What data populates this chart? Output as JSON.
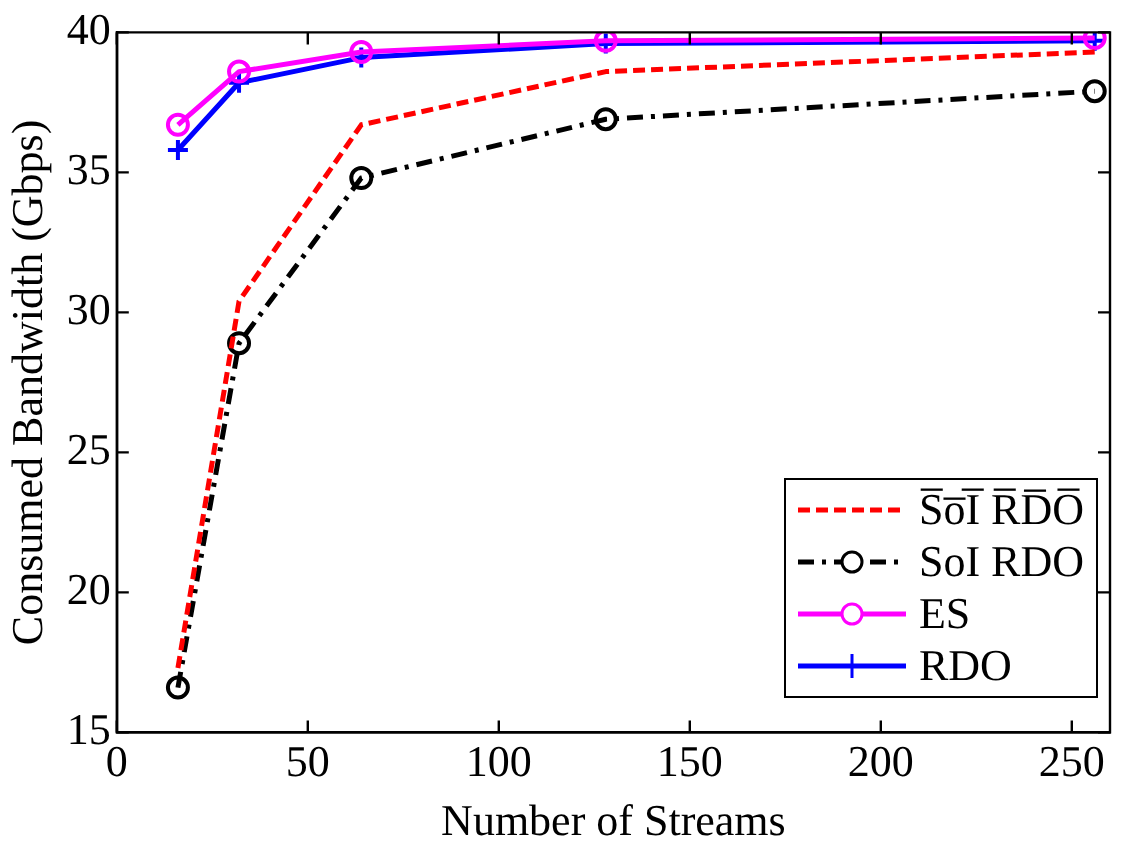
{
  "chart_data": {
    "type": "line",
    "xlabel": "Number of Streams",
    "ylabel": "Consumed Bandwidth (Gbps)",
    "x": [
      16,
      32,
      64,
      128,
      256
    ],
    "xlim": [
      0,
      260
    ],
    "xticks": [
      0,
      50,
      100,
      150,
      200,
      250
    ],
    "ylim": [
      15,
      40
    ],
    "yticks": [
      15,
      20,
      25,
      30,
      35,
      40
    ],
    "grid": false,
    "legend": "bottom right",
    "series": [
      {
        "name": "S̅o̅I̅ R̅D̅O̅",
        "color": "#ff0000",
        "values": [
          17.3,
          30.4,
          36.7,
          38.6,
          39.3
        ],
        "marker": "none",
        "line_style": "dashed"
      },
      {
        "name": "SoI RDO",
        "color": "#000000",
        "values": [
          16.6,
          28.9,
          34.8,
          36.9,
          37.9
        ],
        "marker": "circle",
        "line_style": "dashdot"
      },
      {
        "name": "ES",
        "color": "#ff00ff",
        "values": [
          36.7,
          38.6,
          39.3,
          39.7,
          39.8
        ],
        "marker": "circle",
        "line_style": "solid"
      },
      {
        "name": "RDO",
        "color": "#0000ff",
        "values": [
          35.8,
          38.2,
          39.1,
          39.6,
          39.7
        ],
        "marker": "cross",
        "line_style": "solid"
      }
    ]
  }
}
